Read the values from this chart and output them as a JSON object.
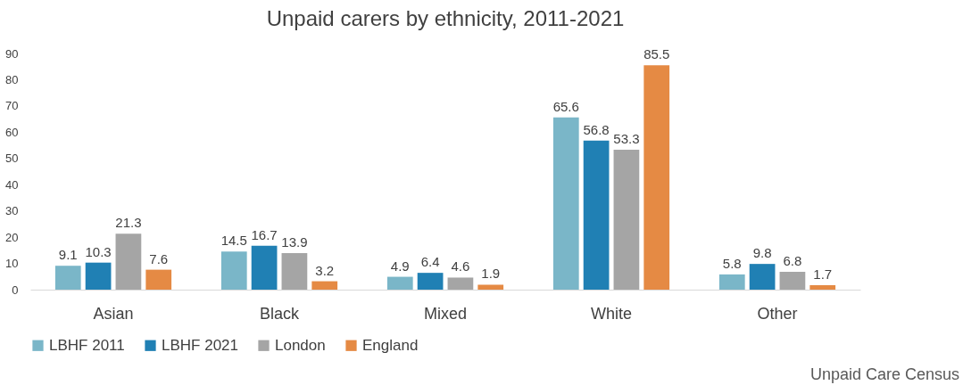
{
  "chart_data": {
    "type": "bar",
    "title": "Unpaid carers by ethnicity, 2011-2021",
    "categories": [
      "Asian",
      "Black",
      "Mixed",
      "White",
      "Other"
    ],
    "series": [
      {
        "name": "LBHF 2011",
        "color": "#7ab6c8",
        "values": [
          9.1,
          14.5,
          4.9,
          65.6,
          5.8
        ]
      },
      {
        "name": "LBHF 2021",
        "color": "#2080b4",
        "values": [
          10.3,
          16.7,
          6.4,
          56.8,
          9.8
        ]
      },
      {
        "name": "London",
        "color": "#a5a5a5",
        "values": [
          21.3,
          13.9,
          4.6,
          53.3,
          6.8
        ]
      },
      {
        "name": "England",
        "color": "#e58a44",
        "values": [
          7.6,
          3.2,
          1.9,
          85.5,
          1.7
        ]
      }
    ],
    "ylim": [
      0,
      90
    ],
    "yticks": [
      0,
      10,
      20,
      30,
      40,
      50,
      60,
      70,
      80,
      90
    ],
    "grid": false,
    "legend": "bottom",
    "data_labels": true,
    "annotations": [
      "Unpaid Care Census"
    ]
  }
}
